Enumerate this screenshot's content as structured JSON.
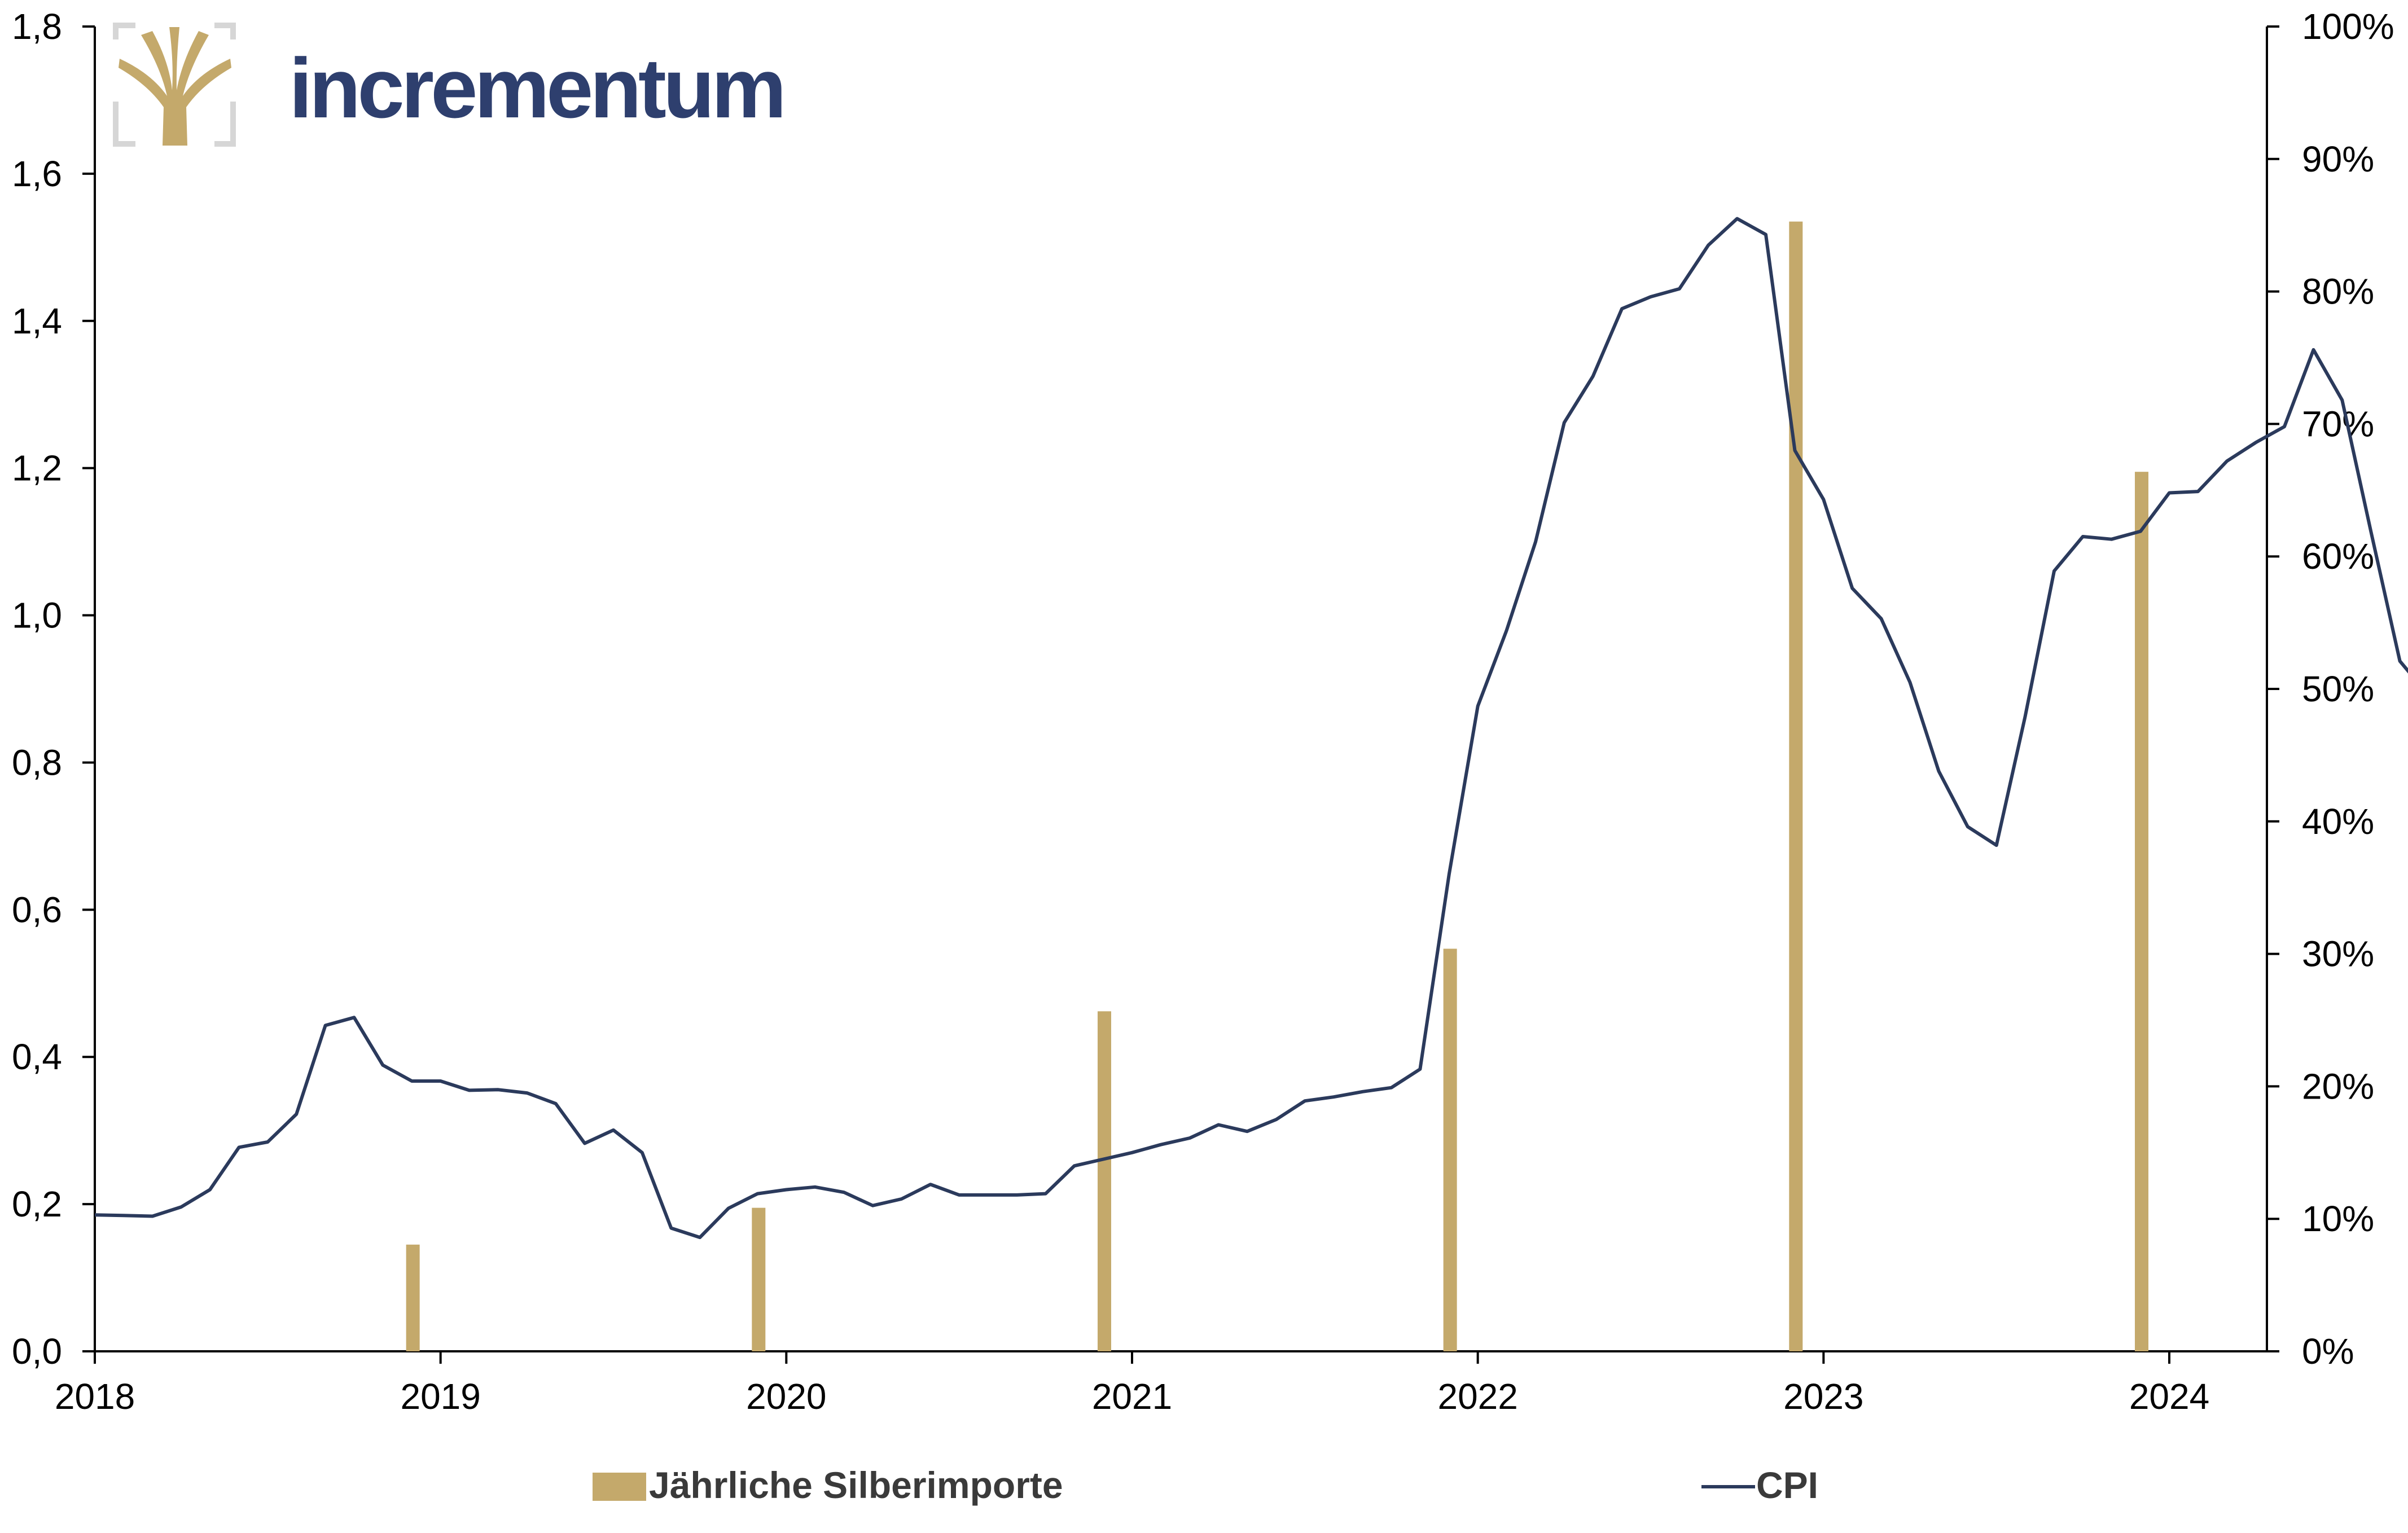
{
  "brand": {
    "name": "incrementum"
  },
  "colors": {
    "bars": "#c4a96b",
    "line": "#2b3a5c",
    "brand_text": "#2e3f6e",
    "logo": "#c4a96b",
    "logo_frame": "#d6d6d6",
    "axis": "#000000"
  },
  "chart_data": {
    "type": "bar",
    "title": "",
    "xlabel": "",
    "ylabel": "",
    "x_range": [
      2018.0,
      2024.95
    ],
    "x_ticks": [
      "2018",
      "2019",
      "2020",
      "2021",
      "2022",
      "2023",
      "2024"
    ],
    "y_left_ticks": [
      "0,0",
      "0,2",
      "0,4",
      "0,6",
      "0,8",
      "1,0",
      "1,2",
      "1,4",
      "1,6",
      "1,8"
    ],
    "y_left_range": [
      0,
      1.8
    ],
    "y_right_ticks": [
      "0%",
      "10%",
      "20%",
      "30%",
      "40%",
      "50%",
      "60%",
      "70%",
      "80%",
      "90%",
      "100%"
    ],
    "y_right_range": [
      0,
      100
    ],
    "legend_position": "bottom",
    "grid": false,
    "series": [
      {
        "name": "Jährliche Silberimporte",
        "type": "bar",
        "axis": "left",
        "points": [
          {
            "x": 2018.92,
            "y": 0.145
          },
          {
            "x": 2019.92,
            "y": 0.195
          },
          {
            "x": 2020.92,
            "y": 0.462
          },
          {
            "x": 2021.92,
            "y": 0.547
          },
          {
            "x": 2022.92,
            "y": 1.535
          },
          {
            "x": 2023.92,
            "y": 1.195
          }
        ]
      },
      {
        "name": "CPI",
        "type": "line",
        "axis": "right",
        "points": [
          [
            2018.0,
            10.3
          ],
          [
            2018.083,
            10.25
          ],
          [
            2018.167,
            10.2
          ],
          [
            2018.25,
            10.9
          ],
          [
            2018.333,
            12.2
          ],
          [
            2018.417,
            15.4
          ],
          [
            2018.5,
            15.8
          ],
          [
            2018.583,
            17.9
          ],
          [
            2018.667,
            24.6
          ],
          [
            2018.75,
            25.2
          ],
          [
            2018.833,
            21.6
          ],
          [
            2018.917,
            20.4
          ],
          [
            2019.0,
            20.4
          ],
          [
            2019.083,
            19.7
          ],
          [
            2019.167,
            19.75
          ],
          [
            2019.25,
            19.5
          ],
          [
            2019.333,
            18.7
          ],
          [
            2019.417,
            15.7
          ],
          [
            2019.5,
            16.7
          ],
          [
            2019.583,
            15.0
          ],
          [
            2019.667,
            9.3
          ],
          [
            2019.75,
            8.6
          ],
          [
            2019.833,
            10.8
          ],
          [
            2019.917,
            11.9
          ],
          [
            2020.0,
            12.2
          ],
          [
            2020.083,
            12.4
          ],
          [
            2020.167,
            12.0
          ],
          [
            2020.25,
            11.0
          ],
          [
            2020.333,
            11.5
          ],
          [
            2020.417,
            12.6
          ],
          [
            2020.5,
            11.8
          ],
          [
            2020.583,
            11.8
          ],
          [
            2020.667,
            11.8
          ],
          [
            2020.75,
            11.9
          ],
          [
            2020.833,
            14.0
          ],
          [
            2020.917,
            14.5
          ],
          [
            2021.0,
            15.0
          ],
          [
            2021.083,
            15.6
          ],
          [
            2021.167,
            16.1
          ],
          [
            2021.25,
            17.1
          ],
          [
            2021.333,
            16.6
          ],
          [
            2021.417,
            17.5
          ],
          [
            2021.5,
            18.9
          ],
          [
            2021.583,
            19.2
          ],
          [
            2021.667,
            19.6
          ],
          [
            2021.75,
            19.9
          ],
          [
            2021.833,
            21.3
          ],
          [
            2021.917,
            36.0
          ],
          [
            2022.0,
            48.7
          ],
          [
            2022.083,
            54.4
          ],
          [
            2022.167,
            61.1
          ],
          [
            2022.25,
            70.1
          ],
          [
            2022.333,
            73.6
          ],
          [
            2022.417,
            78.7
          ],
          [
            2022.5,
            79.6
          ],
          [
            2022.583,
            80.2
          ],
          [
            2022.667,
            83.5
          ],
          [
            2022.75,
            85.5
          ],
          [
            2022.833,
            84.3
          ],
          [
            2022.917,
            68.0
          ],
          [
            2023.0,
            64.3
          ],
          [
            2023.083,
            57.6
          ],
          [
            2023.167,
            55.3
          ],
          [
            2023.25,
            50.5
          ],
          [
            2023.333,
            43.8
          ],
          [
            2023.417,
            39.6
          ],
          [
            2023.5,
            38.2
          ],
          [
            2023.583,
            47.9
          ],
          [
            2023.667,
            58.9
          ],
          [
            2023.75,
            61.5
          ],
          [
            2023.833,
            61.3
          ],
          [
            2023.917,
            61.9
          ],
          [
            2024.0,
            64.8
          ],
          [
            2024.083,
            64.9
          ],
          [
            2024.167,
            67.2
          ],
          [
            2024.25,
            68.6
          ],
          [
            2024.333,
            69.8
          ],
          [
            2024.417,
            75.6
          ],
          [
            2024.5,
            71.8
          ],
          [
            2024.583,
            61.9
          ],
          [
            2024.667,
            52.1
          ],
          [
            2024.75,
            49.5
          ],
          [
            2024.833,
            48.7
          ],
          [
            2024.917,
            47.1
          ],
          [
            2024.95,
            44.2
          ]
        ]
      }
    ]
  }
}
